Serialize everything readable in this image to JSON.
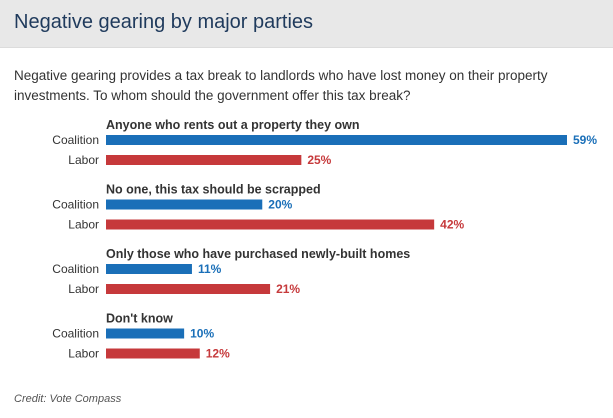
{
  "title": "Negative gearing by major parties",
  "question": "Negative gearing provides a tax break to landlords who have lost money on their property investments. To whom should the government offer this tax break?",
  "credit": "Credit: Vote Compass",
  "colors": {
    "coalition": "#1a6fb8",
    "labor": "#c6393b",
    "header_bg": "#e8e8e8",
    "title": "#1f3a5c",
    "text": "#333333"
  },
  "chart_data": {
    "type": "bar",
    "orientation": "horizontal",
    "title": "Negative gearing by major parties",
    "unit": "%",
    "xlim": [
      0,
      59
    ],
    "series_names": [
      "Coalition",
      "Labor"
    ],
    "groups": [
      {
        "label": "Anyone who rents out a property they own",
        "values": [
          59,
          25
        ]
      },
      {
        "label": "No one, this tax should be scrapped",
        "values": [
          20,
          42
        ]
      },
      {
        "label": "Only those who have purchased newly-built homes",
        "values": [
          11,
          21
        ]
      },
      {
        "label": "Don't know",
        "values": [
          10,
          12
        ]
      }
    ]
  }
}
